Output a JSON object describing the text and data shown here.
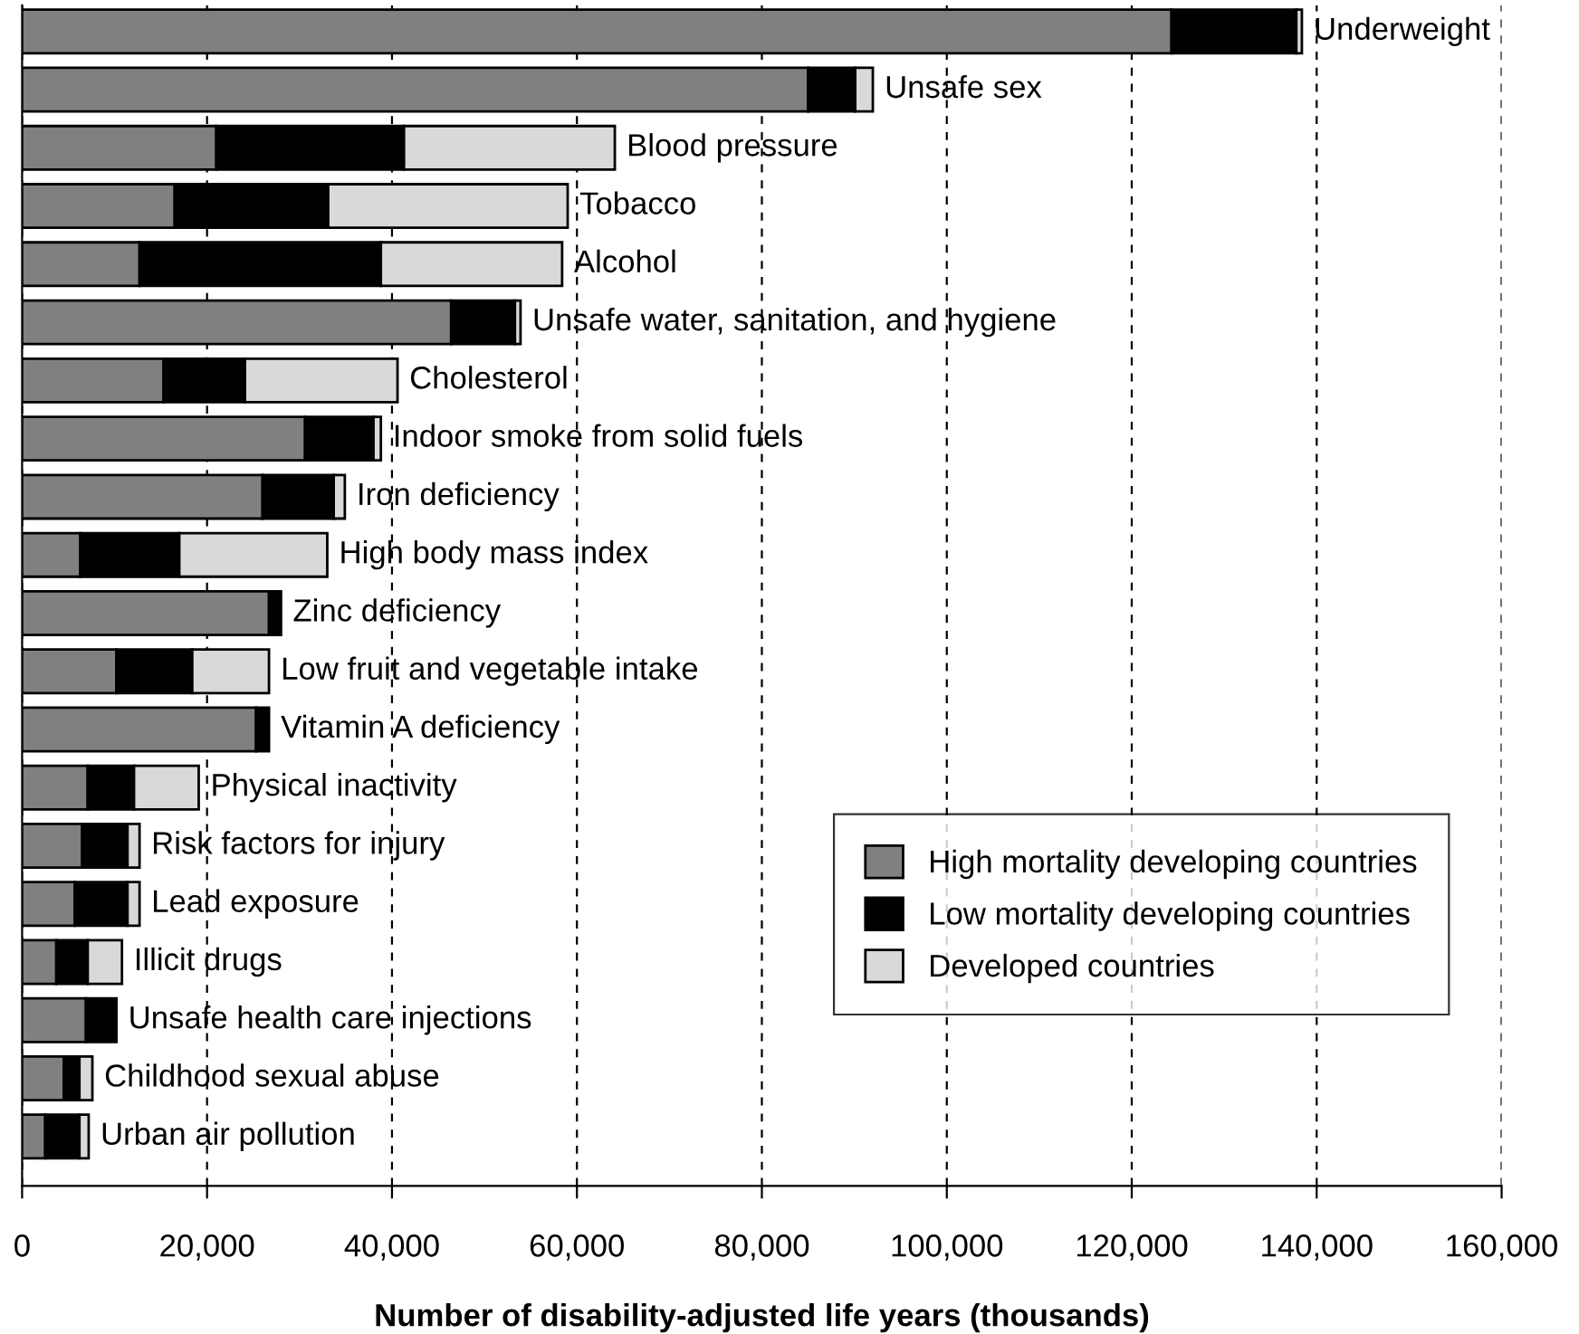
{
  "chart_data": {
    "type": "bar",
    "orientation": "horizontal",
    "stacked": true,
    "xlabel": "Number of disability-adjusted life years (thousands)",
    "categories": [
      "Underweight",
      "Unsafe sex",
      "Blood pressure",
      "Tobacco",
      "Alcohol",
      "Unsafe water, sanitation, and hygiene",
      "Cholesterol",
      "Indoor smoke from solid fuels",
      "Iron deficiency",
      "High body mass index",
      "Zinc deficiency",
      "Low fruit and vegetable intake",
      "Vitamin A deficiency",
      "Physical inactivity",
      "Risk factors for injury",
      "Lead exposure",
      "Illicit drugs",
      "Unsafe health care injections",
      "Childhood sexual abuse",
      "Urban air pollution"
    ],
    "series": [
      {
        "name": "High mortality developing countries",
        "color": "#808080",
        "values": [
          124300,
          85000,
          21000,
          16500,
          12700,
          46400,
          15300,
          30600,
          26000,
          6300,
          26700,
          10200,
          25300,
          7100,
          6500,
          5700,
          3700,
          6900,
          4500,
          2500
        ]
      },
      {
        "name": "Low mortality developing countries",
        "color": "#000000",
        "values": [
          13500,
          5100,
          20300,
          16600,
          26100,
          6900,
          8800,
          7400,
          7700,
          10700,
          1300,
          8200,
          1400,
          5000,
          4900,
          5700,
          3400,
          3300,
          1700,
          3700
        ]
      },
      {
        "name": "Developed countries",
        "color": "#d9d9d9",
        "values": [
          600,
          1900,
          22800,
          25900,
          19600,
          600,
          16500,
          800,
          1200,
          16000,
          null,
          8300,
          null,
          7000,
          1300,
          1300,
          3700,
          null,
          1400,
          1000
        ]
      }
    ],
    "xlim": [
      0,
      160000
    ],
    "xticks": [
      {
        "value": 0,
        "label": "0"
      },
      {
        "value": 20000,
        "label": "20,000"
      },
      {
        "value": 40000,
        "label": "40,000"
      },
      {
        "value": 60000,
        "label": "60,000"
      },
      {
        "value": 80000,
        "label": "80,000"
      },
      {
        "value": 100000,
        "label": "100,000"
      },
      {
        "value": 120000,
        "label": "120,000"
      },
      {
        "value": 140000,
        "label": "140,000"
      },
      {
        "value": 160000,
        "label": "160,000"
      }
    ],
    "grid": "x",
    "legend": "right"
  }
}
